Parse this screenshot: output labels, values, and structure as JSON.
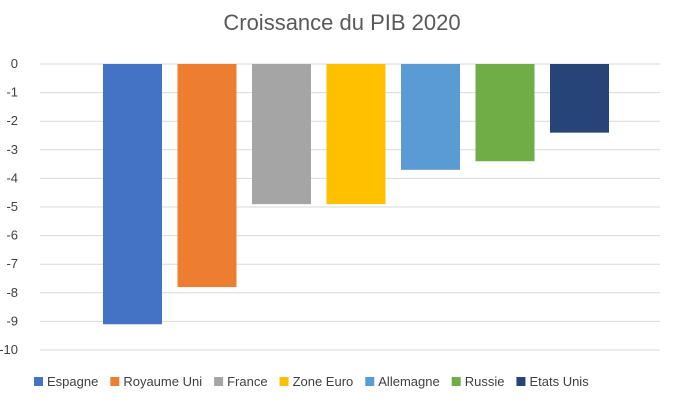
{
  "chart_data": {
    "type": "bar",
    "title": "Croissance du PIB 2020",
    "xlabel": "",
    "ylabel": "",
    "categories": [
      "Espagne",
      "Royaume Uni",
      "France",
      "Zone Euro",
      "Allemagne",
      "Russie",
      "Etats Unis"
    ],
    "values": [
      -9.1,
      -7.8,
      -4.9,
      -4.9,
      -3.7,
      -3.4,
      -2.4
    ],
    "colors": [
      "#4472c4",
      "#ed7d31",
      "#a5a5a5",
      "#ffc000",
      "#5b9bd5",
      "#70ad47",
      "#264478"
    ],
    "ylim": [
      -10,
      0
    ],
    "yticks": [
      "0",
      "-1",
      "-2",
      "-3",
      "-4",
      "-5",
      "-6",
      "-7",
      "-8",
      "-9",
      "-10"
    ],
    "grid": true,
    "legend": "bottom"
  }
}
